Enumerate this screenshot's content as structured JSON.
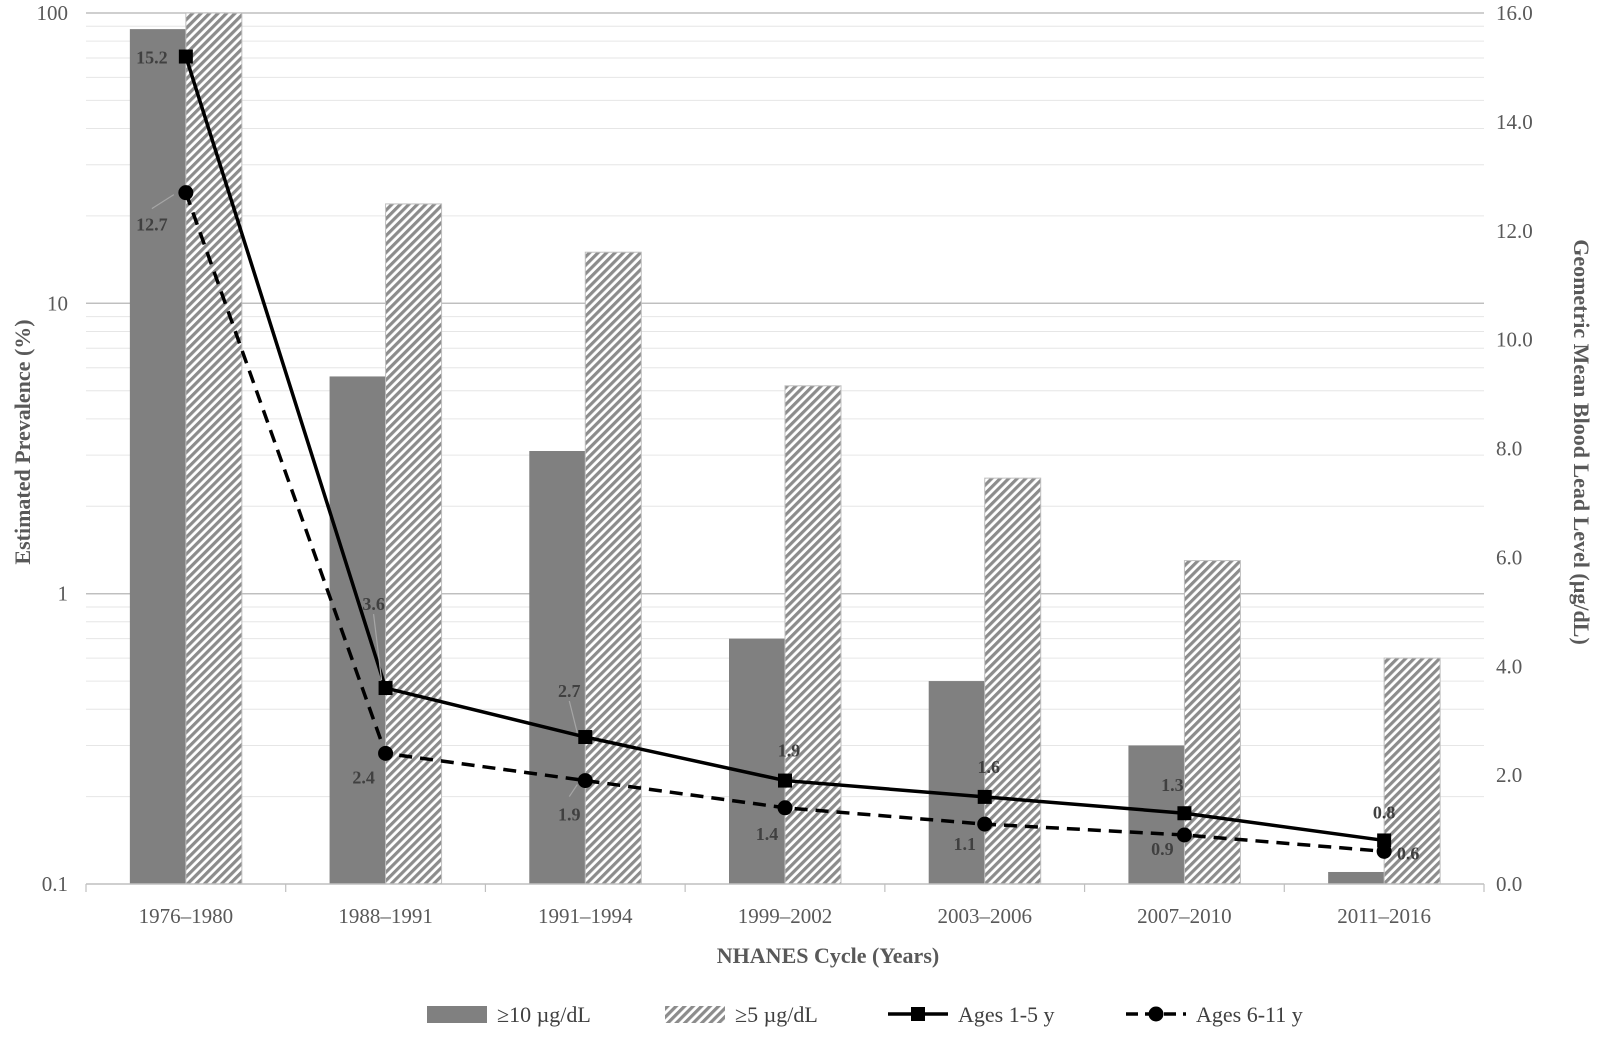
{
  "chart_data": {
    "type": "bar",
    "title": "",
    "xlabel": "NHANES Cycle (Years)",
    "ylabel": "Estimated Prevalence (%)",
    "ylabel_right": "Geometric Mean Blood Lead Level (µg/dL)",
    "categories": [
      "1976–1980",
      "1988–1991",
      "1991–1994",
      "1999–2002",
      "2003–2006",
      "2007–2010",
      "2011–2016"
    ],
    "y_scale": "log",
    "ylim": [
      0.1,
      100
    ],
    "y_ticks": [
      "0.1",
      "1",
      "10",
      "100"
    ],
    "y2lim": [
      0,
      16
    ],
    "y2_ticks": [
      "0.0",
      "2.0",
      "4.0",
      "6.0",
      "8.0",
      "10.0",
      "12.0",
      "14.0",
      "16.0"
    ],
    "grid": true,
    "legend_position": "bottom",
    "bar_series": [
      {
        "name": "≥10 µg/dL",
        "axis": "left",
        "style": "solid",
        "color": "#808080",
        "values": [
          88,
          5.6,
          3.1,
          0.7,
          0.5,
          0.3,
          0.11
        ]
      },
      {
        "name": "≥5 µg/dL",
        "axis": "left",
        "style": "hatched",
        "color": "#a6a6a6",
        "values": [
          100,
          22,
          15,
          5.2,
          2.5,
          1.3,
          0.6
        ]
      }
    ],
    "line_series": [
      {
        "name": "Ages 1-5 y",
        "axis": "right",
        "style": "solid",
        "marker": "square",
        "color": "#000000",
        "values": [
          15.2,
          3.6,
          2.7,
          1.9,
          1.6,
          1.3,
          0.8
        ],
        "labels": [
          "15.2",
          "3.6",
          "2.7",
          "1.9",
          "1.6",
          "1.3",
          "0.8"
        ]
      },
      {
        "name": "Ages 6-11 y",
        "axis": "right",
        "style": "dashed",
        "marker": "circle",
        "color": "#000000",
        "values": [
          12.7,
          2.4,
          1.9,
          1.4,
          1.1,
          0.9,
          0.6
        ],
        "labels": [
          "12.7",
          "2.4",
          "1.9",
          "1.4",
          "1.1",
          "0.9",
          "0.6"
        ]
      }
    ]
  }
}
